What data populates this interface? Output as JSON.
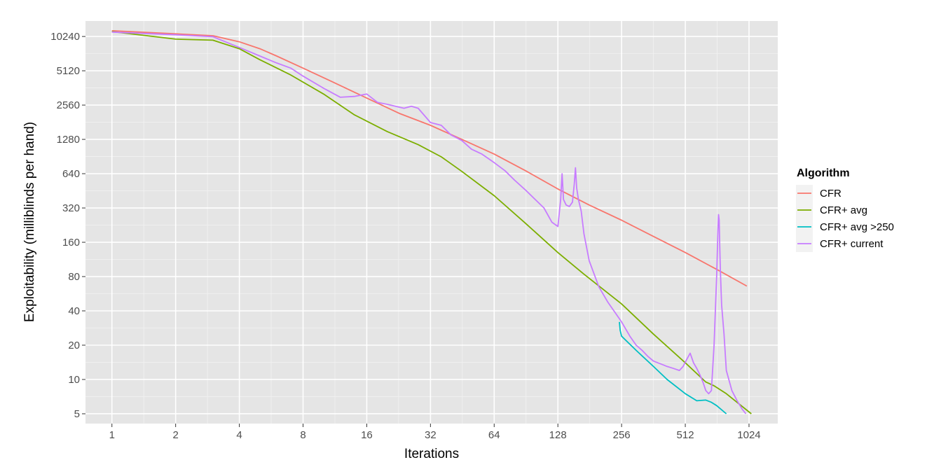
{
  "chart_data": {
    "type": "line",
    "title": "",
    "xlabel": "Iterations",
    "ylabel": "Exploitability (milliblinds per hand)",
    "x_scale": "log2",
    "y_scale": "log2",
    "xlim": [
      0.75,
      1400
    ],
    "ylim": [
      4.1,
      14000
    ],
    "x_ticks": [
      1,
      2,
      4,
      8,
      16,
      32,
      64,
      128,
      256,
      512,
      1024
    ],
    "x_tick_labels": [
      "1",
      "2",
      "4",
      "8",
      "16",
      "32",
      "64",
      "128",
      "256",
      "512",
      "1024"
    ],
    "y_ticks": [
      5,
      10,
      20,
      40,
      80,
      160,
      320,
      640,
      1280,
      2560,
      5120,
      10240
    ],
    "y_tick_labels": [
      "5",
      "10",
      "20",
      "40",
      "80",
      "160",
      "320",
      "640",
      "1280",
      "2560",
      "5120",
      "10240"
    ],
    "grid": true,
    "legend": {
      "title": "Algorithm",
      "position": "right",
      "entries": [
        "CFR",
        "CFR+ avg",
        "CFR+ avg >250",
        "CFR+ current"
      ]
    },
    "series": [
      {
        "name": "CFR",
        "color": "#F8766D",
        "x": [
          1,
          2,
          3,
          4,
          5,
          6,
          8,
          11,
          16,
          23,
          32,
          45,
          64,
          90,
          128,
          180,
          256,
          362,
          512,
          724,
          1000
        ],
        "y": [
          11500,
          10800,
          10400,
          9200,
          8000,
          6900,
          5400,
          4100,
          2950,
          2150,
          1700,
          1280,
          950,
          680,
          470,
          340,
          250,
          180,
          130,
          92,
          66
        ]
      },
      {
        "name": "CFR+ avg",
        "color": "#7CAE00",
        "x": [
          1,
          2,
          3,
          4,
          5,
          7,
          10,
          14,
          20,
          28,
          36,
          45,
          64,
          90,
          128,
          170,
          256,
          362,
          512,
          640,
          700,
          800,
          1050
        ],
        "y": [
          11300,
          9700,
          9500,
          8000,
          6400,
          4700,
          3200,
          2100,
          1500,
          1150,
          900,
          670,
          410,
          235,
          130,
          84,
          46,
          25,
          14,
          9.5,
          8.8,
          7.5,
          5
        ]
      },
      {
        "name": "CFR+ avg >250",
        "color": "#00BFC4",
        "x": [
          250,
          252,
          256,
          300,
          362,
          420,
          512,
          580,
          640,
          680,
          720,
          800
        ],
        "y": [
          32,
          27,
          24,
          18,
          13,
          10,
          7.5,
          6.5,
          6.6,
          6.3,
          5.9,
          5
        ]
      },
      {
        "name": "CFR+ current",
        "color": "#C77CFF",
        "x": [
          1,
          2,
          3,
          4,
          5,
          6,
          7,
          8,
          10,
          12,
          14,
          16,
          18,
          20,
          24,
          26,
          28,
          32,
          36,
          40,
          45,
          50,
          56,
          64,
          72,
          80,
          90,
          100,
          110,
          120,
          128,
          132,
          134,
          136,
          140,
          145,
          150,
          153,
          155,
          157,
          160,
          165,
          170,
          180,
          200,
          220,
          240,
          256,
          280,
          300,
          320,
          340,
          362,
          380,
          400,
          420,
          450,
          480,
          500,
          520,
          540,
          560,
          580,
          600,
          620,
          640,
          660,
          680,
          700,
          720,
          730,
          735,
          740,
          745,
          750,
          760,
          780,
          800,
          850,
          900,
          950,
          990
        ],
        "y": [
          11200,
          10600,
          10200,
          8200,
          6900,
          6000,
          5400,
          4600,
          3600,
          3000,
          3050,
          3200,
          2700,
          2600,
          2400,
          2500,
          2400,
          1800,
          1700,
          1400,
          1250,
          1050,
          950,
          800,
          680,
          560,
          460,
          380,
          320,
          240,
          220,
          380,
          640,
          380,
          340,
          330,
          360,
          520,
          720,
          480,
          380,
          300,
          190,
          110,
          65,
          48,
          38,
          32,
          24,
          20,
          18,
          16,
          14.5,
          14,
          13.5,
          13,
          12.5,
          12,
          13,
          15,
          17,
          14,
          12.5,
          11,
          9.5,
          8,
          7.5,
          8,
          20,
          80,
          200,
          280,
          250,
          150,
          90,
          45,
          25,
          12,
          8,
          6.5,
          5.5,
          5
        ]
      }
    ]
  }
}
